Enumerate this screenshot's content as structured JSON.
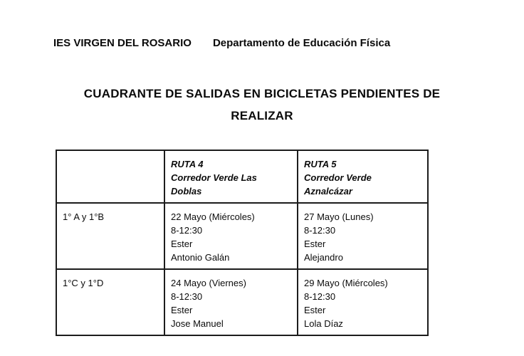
{
  "header": {
    "school": "IES VIRGEN DEL ROSARIO",
    "department": "Departamento de Educación Física"
  },
  "title": {
    "line1": "CUADRANTE DE SALIDAS EN BICICLETAS PENDIENTES DE",
    "line2": "REALIZAR"
  },
  "table": {
    "header": {
      "group": "",
      "ruta4": {
        "lines": [
          "RUTA 4",
          "Corredor Verde Las",
          "Doblas"
        ]
      },
      "ruta5": {
        "lines": [
          "RUTA 5",
          "Corredor Verde",
          "Aznalcázar"
        ]
      }
    },
    "rows": [
      {
        "group": "1° A y 1°B",
        "ruta4": {
          "lines": [
            "22 Mayo (Miércoles)",
            "8-12:30",
            "Ester",
            "Antonio Galán"
          ]
        },
        "ruta5": {
          "lines": [
            "27 Mayo (Lunes)",
            "8-12:30",
            "Ester",
            "Alejandro"
          ]
        }
      },
      {
        "group": "1°C y 1°D",
        "ruta4": {
          "lines": [
            "24 Mayo (Viernes)",
            "8-12:30",
            "Ester",
            "Jose Manuel"
          ]
        },
        "ruta5": {
          "lines": [
            "29 Mayo (Miércoles)",
            "8-12:30",
            "Ester",
            "Lola Díaz"
          ]
        }
      }
    ]
  }
}
